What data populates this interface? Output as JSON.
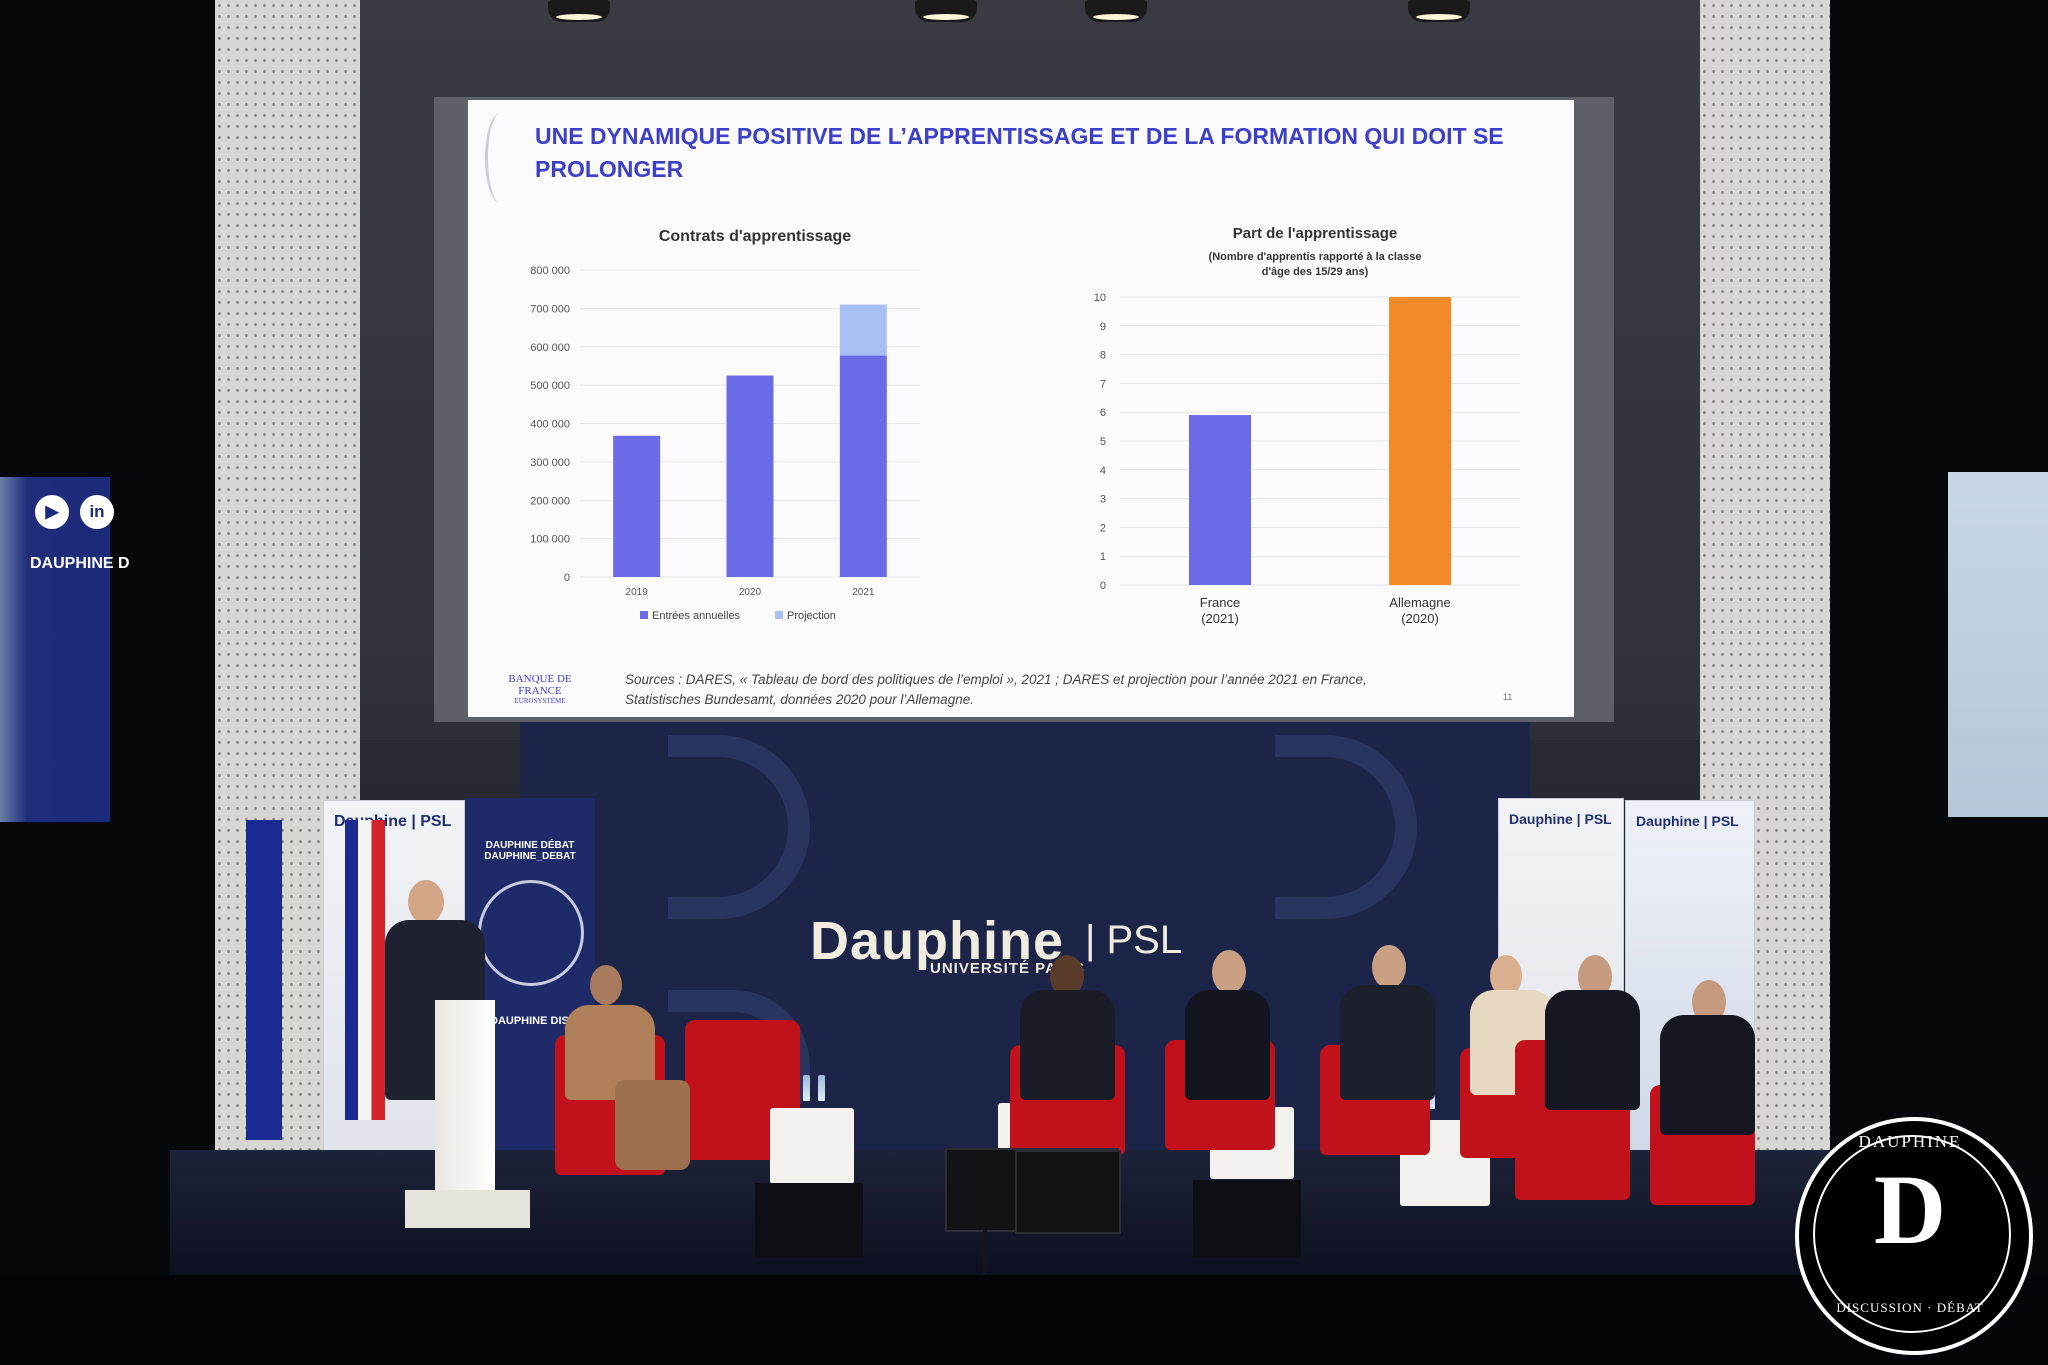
{
  "slide": {
    "title": "UNE DYNAMIQUE POSITIVE DE L’APPRENTISSAGE ET DE LA FORMATION QUI DOIT SE PROLONGER",
    "source_line1": "Sources : DARES, « Tableau de bord des politiques de l’emploi », 2021 ; DARES et projection pour l’année 2021 en France,",
    "source_line2": "Statistisches Bundesamt, données 2020 pour l’Allemagne.",
    "page_number": "11",
    "logo_text": "BANQUE DE FRANCE",
    "logo_subtext": "EUROSYSTÈME",
    "title_color": "#3c3fc7"
  },
  "chart_data": [
    {
      "type": "bar",
      "title": "Contrats d'apprentissage",
      "categories": [
        "2019",
        "2020",
        "2021"
      ],
      "series": [
        {
          "name": "Entrées annuelles",
          "color": "#6b6be8",
          "values": [
            368000,
            525000,
            577000
          ]
        },
        {
          "name": "Projection",
          "color": "#a7bff2",
          "values": [
            0,
            0,
            133000
          ]
        }
      ],
      "stacked": true,
      "ylim": [
        0,
        800000
      ],
      "yticks": [
        "800 000",
        "700 000",
        "600 000",
        "500 000",
        "400 000",
        "300 000",
        "200 000",
        "100 000",
        "0"
      ],
      "legend_position": "bottom"
    },
    {
      "type": "bar",
      "title": "Part de l'apprentissage",
      "subtitle_line1": "(Nombre d'apprentis rapporté à la classe",
      "subtitle_line2": "d'âge des 15/29 ans)",
      "categories": [
        {
          "name": "France",
          "year": "(2021)",
          "value": 5.9,
          "color": "#6b6be8"
        },
        {
          "name": "Allemagne",
          "year": "(2020)",
          "value": 10,
          "color": "#f28a2a"
        }
      ],
      "ylim": [
        0,
        10
      ],
      "yticks": [
        "10",
        "9",
        "8",
        "7",
        "6",
        "5",
        "4",
        "3",
        "2",
        "1",
        "0"
      ]
    }
  ],
  "stage": {
    "backdrop_brand": "Dauphine",
    "backdrop_psl": "| PSL",
    "backdrop_sub": "UNIVERSITÉ PARIS",
    "banner_brand": "Dauphine | PSL",
    "banner_social": "DAUPHINE DÉBAT   DAUPHINE_DEBAT",
    "banner_caption": "DAUPHINE DISCUSSION",
    "left_screen_text": "DAUPHINE D",
    "left_screen_icons": [
      "youtube-icon",
      "linkedin-icon"
    ]
  },
  "watermark": {
    "text_top": "DAUPHINE",
    "text_bottom": "DISCUSSION · DÉBAT",
    "monogram": "D"
  }
}
